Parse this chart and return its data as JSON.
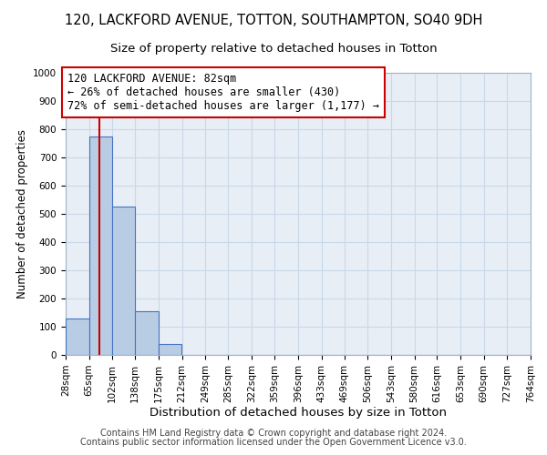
{
  "title": "120, LACKFORD AVENUE, TOTTON, SOUTHAMPTON, SO40 9DH",
  "subtitle": "Size of property relative to detached houses in Totton",
  "xlabel": "Distribution of detached houses by size in Totton",
  "ylabel": "Number of detached properties",
  "bar_edges": [
    28,
    65,
    102,
    138,
    175,
    212,
    249,
    285,
    322,
    359,
    396,
    433,
    469,
    506,
    543,
    580,
    616,
    653,
    690,
    727,
    764
  ],
  "bar_heights": [
    130,
    775,
    525,
    155,
    40,
    0,
    0,
    0,
    0,
    0,
    0,
    0,
    0,
    0,
    0,
    0,
    0,
    0,
    0,
    0
  ],
  "bar_color": "#b8cce4",
  "bar_edge_color": "#4472c4",
  "bar_edge_width": 0.8,
  "property_line_x": 82,
  "property_line_color": "#cc0000",
  "annotation_text": "120 LACKFORD AVENUE: 82sqm\n← 26% of detached houses are smaller (430)\n72% of semi-detached houses are larger (1,177) →",
  "annotation_box_color": "#ffffff",
  "annotation_box_edge_color": "#cc0000",
  "ylim": [
    0,
    1000
  ],
  "yticks": [
    0,
    100,
    200,
    300,
    400,
    500,
    600,
    700,
    800,
    900,
    1000
  ],
  "grid_color": "#c8d8e8",
  "background_color": "#e8eef5",
  "footer_line1": "Contains HM Land Registry data © Crown copyright and database right 2024.",
  "footer_line2": "Contains public sector information licensed under the Open Government Licence v3.0.",
  "title_fontsize": 10.5,
  "subtitle_fontsize": 9.5,
  "xlabel_fontsize": 9.5,
  "ylabel_fontsize": 8.5,
  "tick_fontsize": 7.5,
  "annotation_fontsize": 8.5,
  "footer_fontsize": 7
}
